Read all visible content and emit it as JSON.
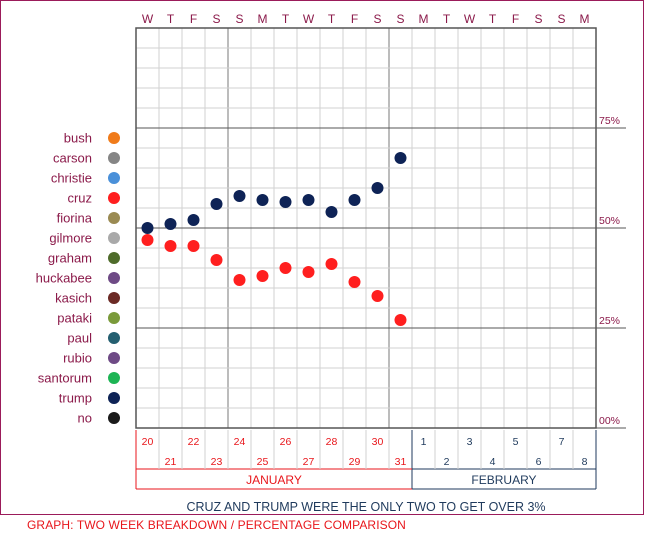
{
  "chart_data": {
    "type": "scatter",
    "title": "",
    "subtitle": "CRUZ AND TRUMP WERE THE ONLY TWO TO GET OVER 3%",
    "caption": "GRAPH: TWO WEEK BREAKDOWN / PERCENTAGE COMPARISON",
    "weekday_labels": [
      "W",
      "T",
      "F",
      "S",
      "S",
      "M",
      "T",
      "W",
      "T",
      "F",
      "S",
      "S",
      "M",
      "T",
      "W",
      "T",
      "F",
      "S",
      "S",
      "M"
    ],
    "day_numbers": [
      "20",
      "21",
      "22",
      "23",
      "24",
      "25",
      "26",
      "27",
      "28",
      "29",
      "30",
      "31",
      "1",
      "2",
      "3",
      "4",
      "5",
      "6",
      "7",
      "8"
    ],
    "months": [
      {
        "name": "JANUARY",
        "color": "#e8161b"
      },
      {
        "name": "FEBRUARY",
        "color": "#1f3a5c"
      }
    ],
    "y_ticks": [
      {
        "label": "00%",
        "value": 0
      },
      {
        "label": "25%",
        "value": 25
      },
      {
        "label": "50%",
        "value": 50
      },
      {
        "label": "75%",
        "value": 75
      }
    ],
    "ylim": [
      0,
      100
    ],
    "grid": true,
    "legend_position": "left",
    "legend": [
      {
        "name": "bush",
        "color": "#f07b1a"
      },
      {
        "name": "carson",
        "color": "#858585"
      },
      {
        "name": "christie",
        "color": "#4a90d9"
      },
      {
        "name": "cruz",
        "color": "#ff1f1f"
      },
      {
        "name": "fiorina",
        "color": "#9a8a52"
      },
      {
        "name": "gilmore",
        "color": "#a9a9a9"
      },
      {
        "name": "graham",
        "color": "#4e6b2a"
      },
      {
        "name": "huckabee",
        "color": "#6e4a85"
      },
      {
        "name": "kasich",
        "color": "#6b2a25"
      },
      {
        "name": "pataki",
        "color": "#7a9a3a"
      },
      {
        "name": "paul",
        "color": "#245f70"
      },
      {
        "name": "rubio",
        "color": "#6e4a85"
      },
      {
        "name": "santorum",
        "color": "#1db454"
      },
      {
        "name": "trump",
        "color": "#0e2356"
      },
      {
        "name": "no",
        "color": "#1a1a1a"
      }
    ],
    "series": [
      {
        "name": "trump",
        "color": "#0e2356",
        "days": [
          "20",
          "21",
          "22",
          "23",
          "24",
          "25",
          "26",
          "27",
          "28",
          "29",
          "30",
          "31"
        ],
        "values": [
          50,
          51,
          52,
          56,
          58,
          57,
          56.5,
          57,
          54,
          57,
          60,
          67.5
        ]
      },
      {
        "name": "cruz",
        "color": "#ff1f1f",
        "days": [
          "20",
          "21",
          "22",
          "23",
          "24",
          "25",
          "26",
          "27",
          "28",
          "29",
          "30",
          "31"
        ],
        "values": [
          47,
          45.5,
          45.5,
          42,
          37,
          38,
          40,
          39,
          41,
          36.5,
          33,
          27
        ]
      }
    ]
  }
}
